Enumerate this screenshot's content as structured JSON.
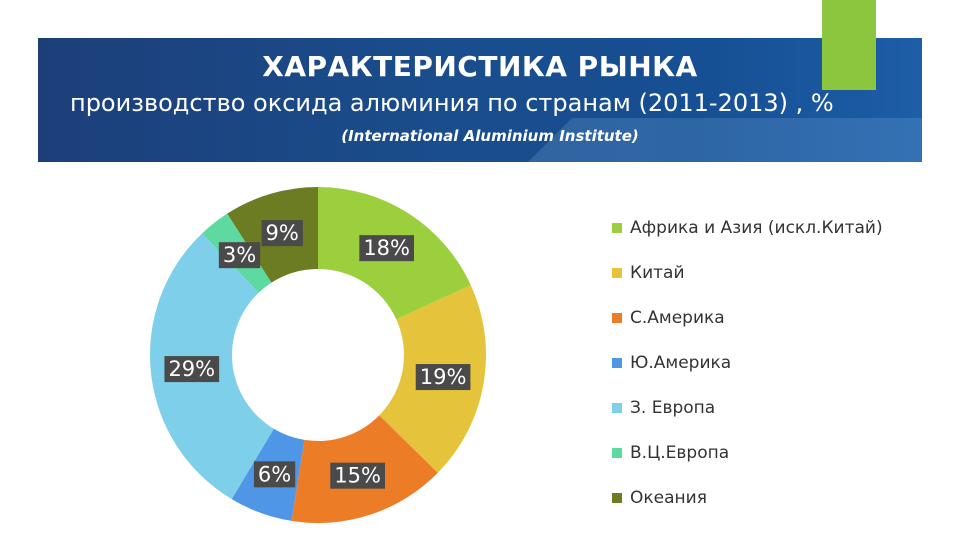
{
  "header": {
    "title": "ХАРАКТЕРИСТИКА РЫНКА",
    "subtitle": "производство оксида алюминия по странам (2011-2013) , %",
    "source": "(International Aluminium Institute)"
  },
  "colors": {
    "banner": "#1a4d8c",
    "accent": "#8cc63f"
  },
  "chart_data": {
    "type": "pie",
    "donut": true,
    "unit": "%",
    "legend_position": "right",
    "categories": [
      "Африка и Азия (искл.Китай)",
      "Китай",
      "С.Америка",
      "Ю.Америка",
      "З. Европа",
      "В.Ц.Европа",
      "Океания"
    ],
    "values": [
      18,
      19,
      15,
      6,
      29,
      3,
      9
    ],
    "labels": [
      "18%",
      "19%",
      "15%",
      "6%",
      "29%",
      "3%",
      "9%"
    ],
    "colors": [
      "#9ccf3d",
      "#e5c33a",
      "#ec7c26",
      "#4f97e6",
      "#7dcfea",
      "#5ed9a0",
      "#6b7c23"
    ]
  }
}
